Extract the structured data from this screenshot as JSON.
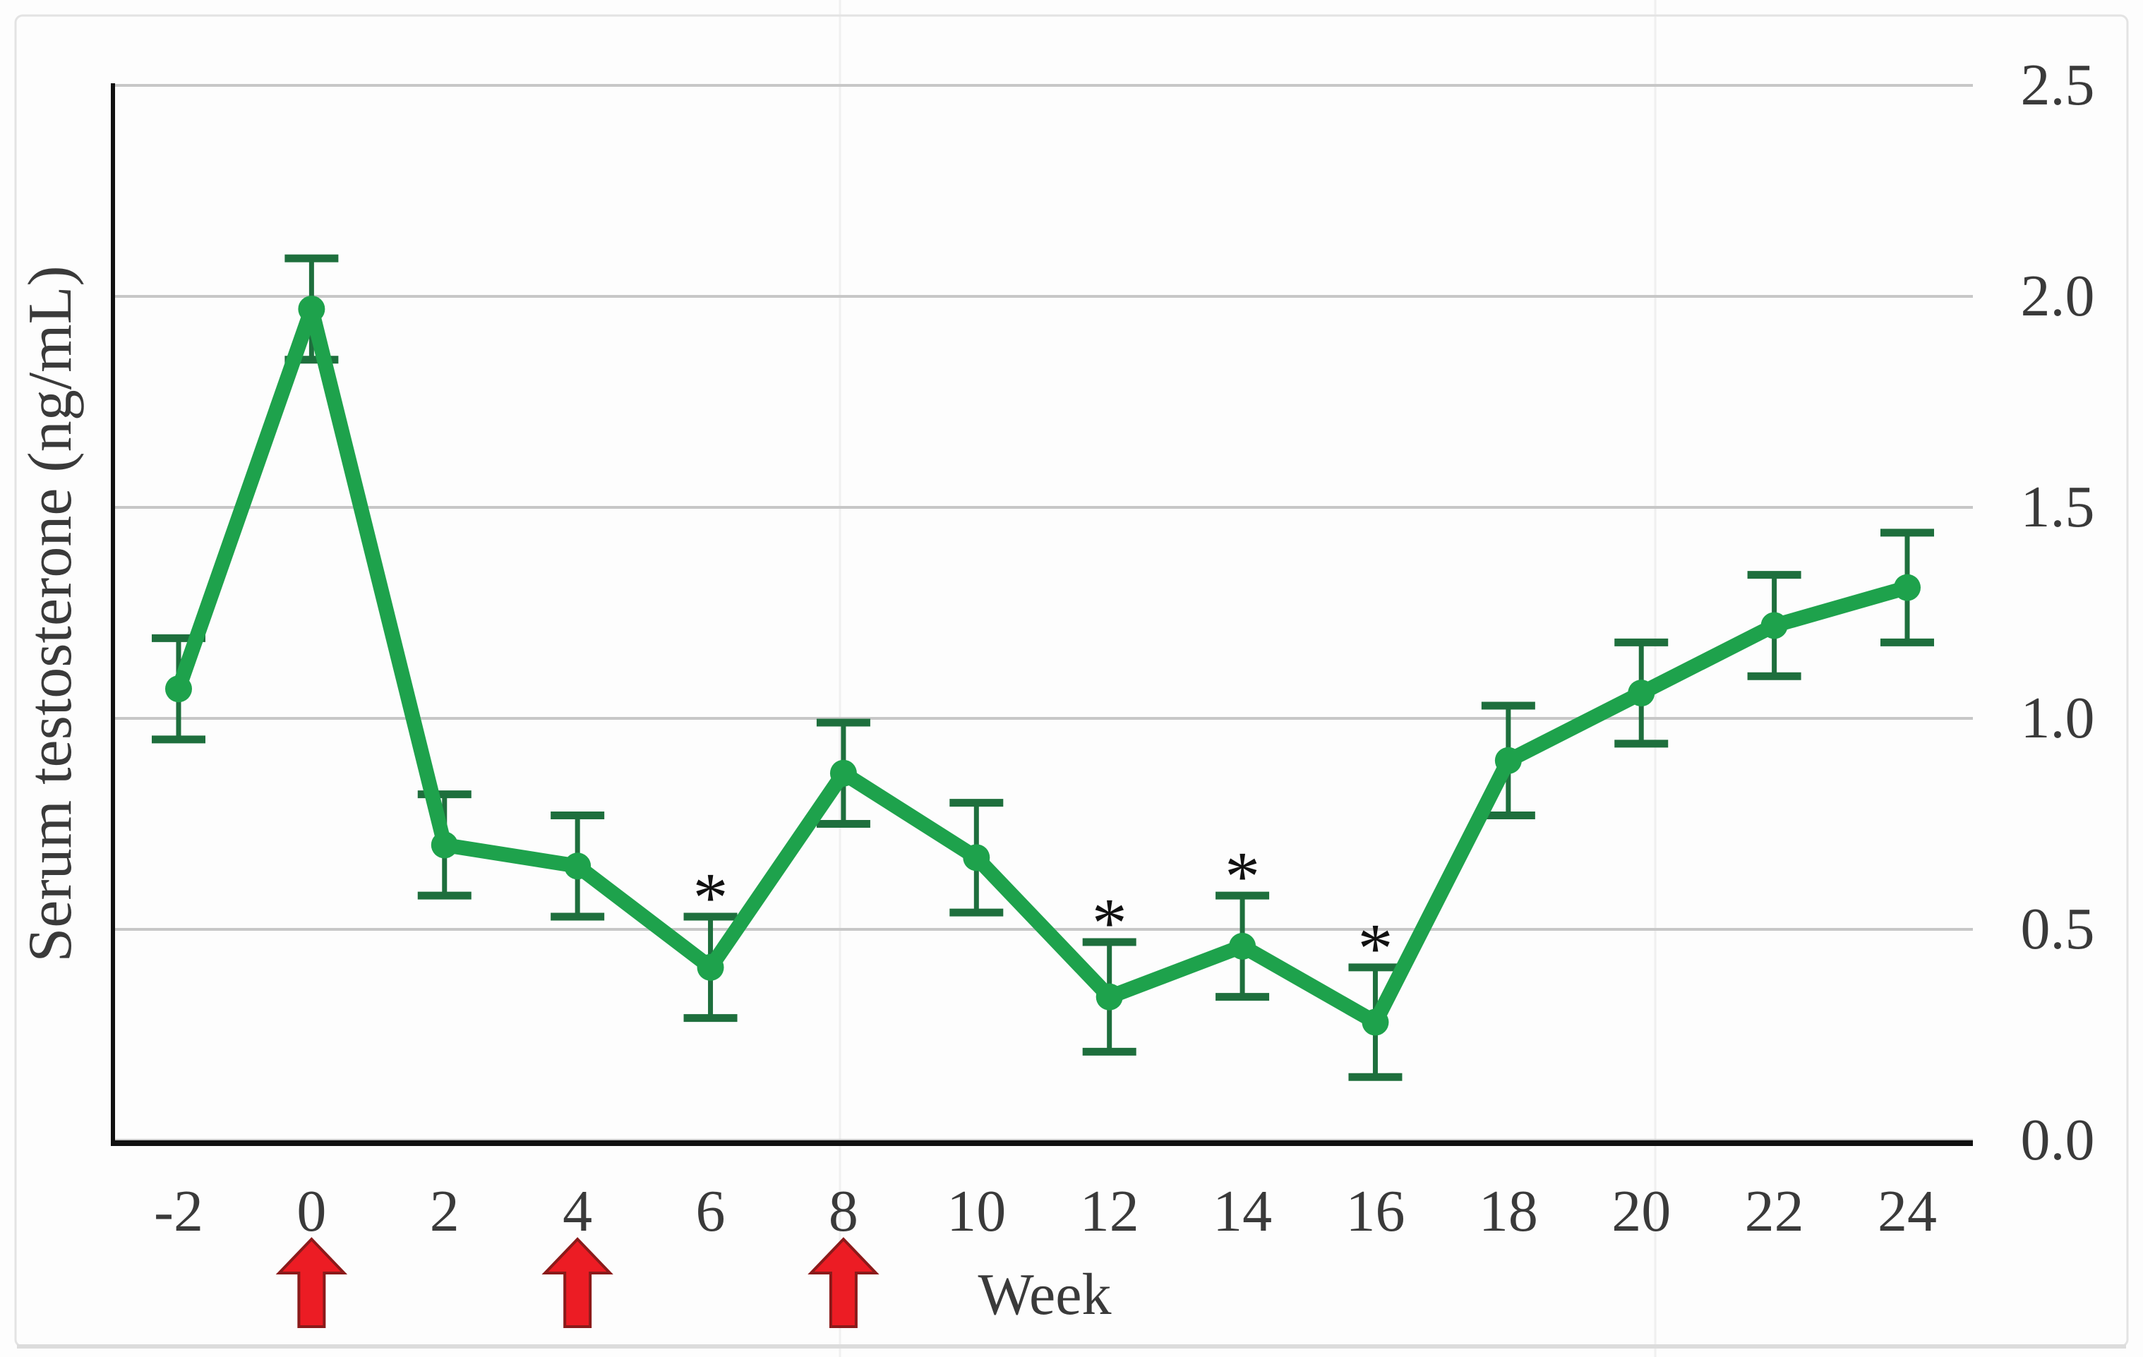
{
  "figure": {
    "background": "#fdfdfd",
    "frame_color": "#e3e3e3",
    "faint_column_line_color": "#f0f0f0"
  },
  "chart_data": {
    "type": "line",
    "title": "",
    "xlabel": "Week",
    "ylabel": "Serum testosterone (ng/mL)",
    "x": [
      -2,
      0,
      2,
      4,
      6,
      8,
      10,
      12,
      14,
      16,
      18,
      20,
      22,
      24
    ],
    "x_tick_labels": [
      "-2",
      "0",
      "2",
      "4",
      "6",
      "8",
      "10",
      "12",
      "14",
      "16",
      "18",
      "20",
      "22",
      "24"
    ],
    "series": [
      {
        "name": "Serum testosterone",
        "color": "#1ea24c",
        "error_color": "#1e6f3d",
        "values": [
          1.07,
          1.97,
          0.7,
          0.65,
          0.41,
          0.87,
          0.67,
          0.34,
          0.46,
          0.28,
          0.9,
          1.06,
          1.22,
          1.31
        ],
        "errors": [
          0.12,
          0.12,
          0.12,
          0.12,
          0.12,
          0.12,
          0.13,
          0.13,
          0.12,
          0.13,
          0.13,
          0.12,
          0.12,
          0.13
        ]
      }
    ],
    "y_ticks": [
      0.0,
      0.5,
      1.0,
      1.5,
      2.0,
      2.5
    ],
    "y_tick_labels": [
      "0.0",
      "0.5",
      "1.0",
      "1.5",
      "2.0",
      "2.5"
    ],
    "ylim": [
      0,
      2.5
    ],
    "xlim": [
      -2,
      24
    ],
    "grid": "horizontal",
    "legend": "none",
    "gridline_color": "#c7c7c7",
    "axis_color": "#111111",
    "text_color": "#3a3a3a",
    "significance_marker": "*",
    "significance_marker_color": "#111111",
    "significant_weeks": [
      6,
      12,
      14,
      16
    ],
    "injection_arrow_weeks": [
      0,
      4,
      8
    ],
    "arrow_color": "#ec1c24",
    "arrow_edge_color": "#8b1a1a"
  }
}
